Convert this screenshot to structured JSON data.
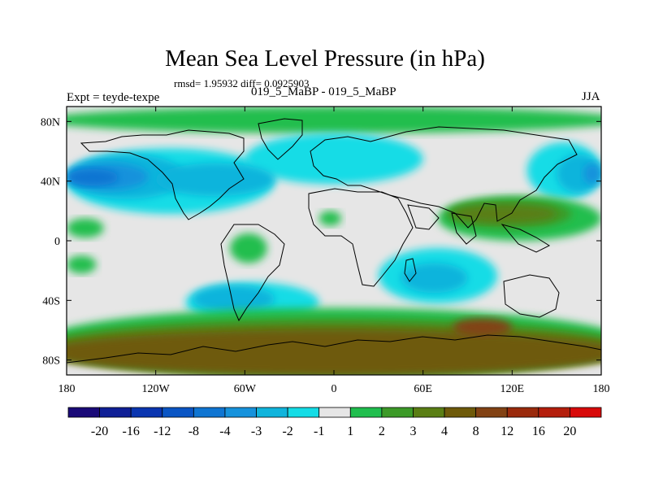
{
  "chart_data": {
    "type": "heatmap",
    "title": "Mean Sea Level Pressure (in hPa)",
    "stats_line": "rmsd= 1.95932 diff= 0.0925903",
    "experiment_label": "Expt = teyde-texpe",
    "comparison_label": "019_5_MaBP - 019_5_MaBP",
    "season": "JJA",
    "projection": "cylindrical equidistant",
    "lon_range": [
      -180,
      180
    ],
    "lat_range": [
      -90,
      90
    ],
    "x_ticks": [
      {
        "value": -180,
        "label": "180"
      },
      {
        "value": -120,
        "label": "120W"
      },
      {
        "value": -60,
        "label": "60W"
      },
      {
        "value": 0,
        "label": "0"
      },
      {
        "value": 60,
        "label": "60E"
      },
      {
        "value": 120,
        "label": "120E"
      },
      {
        "value": 180,
        "label": "180"
      }
    ],
    "y_ticks": [
      {
        "value": 80,
        "label": "80N"
      },
      {
        "value": 40,
        "label": "40N"
      },
      {
        "value": 0,
        "label": "0"
      },
      {
        "value": -40,
        "label": "40S"
      },
      {
        "value": -80,
        "label": "80S"
      }
    ],
    "colorbar": {
      "labels": [
        "-20",
        "-16",
        "-12",
        "-8",
        "-4",
        "-3",
        "-2",
        "-1",
        "1",
        "2",
        "3",
        "4",
        "8",
        "12",
        "16",
        "20"
      ],
      "colors": [
        "#1a0a78",
        "#0f1f96",
        "#0a35b0",
        "#0a55c4",
        "#0f75d2",
        "#1692dc",
        "#10b4dc",
        "#14dce6",
        "#e6e6e6",
        "#20be4e",
        "#3c9a28",
        "#5a7e14",
        "#6e5a0a",
        "#824214",
        "#9a2a0c",
        "#b41e0c",
        "#d80a0a"
      ]
    },
    "regions": [
      {
        "level": "1",
        "color": "#e6e6e6",
        "lon_min": -180,
        "lon_max": 180,
        "lat_min": -90,
        "lat_max": 90
      },
      {
        "level": "2",
        "color": "#20be4e",
        "lon_min": -180,
        "lon_max": 180,
        "lat_min": 72,
        "lat_max": 90
      },
      {
        "level": "-1",
        "color": "#14dce6",
        "lon_min": -180,
        "lon_max": -40,
        "lat_min": 18,
        "lat_max": 62
      },
      {
        "level": "-2",
        "color": "#10b4dc",
        "lon_min": -180,
        "lon_max": -100,
        "lat_min": 28,
        "lat_max": 58
      },
      {
        "level": "-3",
        "color": "#1692dc",
        "lon_min": -180,
        "lon_max": -125,
        "lat_min": 34,
        "lat_max": 52
      },
      {
        "level": "-4",
        "color": "#0f75d2",
        "lon_min": -180,
        "lon_max": -145,
        "lat_min": 37,
        "lat_max": 48
      },
      {
        "level": "-1",
        "color": "#14dce6",
        "lon_min": -60,
        "lon_max": 60,
        "lat_min": 38,
        "lat_max": 72
      },
      {
        "level": "-2",
        "color": "#10b4dc",
        "lon_min": -120,
        "lon_max": -40,
        "lat_min": 30,
        "lat_max": 52
      },
      {
        "level": "-1",
        "color": "#14dce6",
        "lon_min": 130,
        "lon_max": 180,
        "lat_min": 28,
        "lat_max": 66
      },
      {
        "level": "-2",
        "color": "#10b4dc",
        "lon_min": 150,
        "lon_max": 180,
        "lat_min": 32,
        "lat_max": 58
      },
      {
        "level": "-3",
        "color": "#1692dc",
        "lon_min": 168,
        "lon_max": 180,
        "lat_min": 38,
        "lat_max": 52
      },
      {
        "level": "2",
        "color": "#20be4e",
        "lon_min": 70,
        "lon_max": 180,
        "lat_min": 0,
        "lat_max": 30
      },
      {
        "level": "3",
        "color": "#3c9a28",
        "lon_min": 75,
        "lon_max": 160,
        "lat_min": 8,
        "lat_max": 28
      },
      {
        "level": "4",
        "color": "#5a7e14",
        "lon_min": 80,
        "lon_max": 150,
        "lat_min": 12,
        "lat_max": 24
      },
      {
        "level": "2",
        "color": "#20be4e",
        "lon_min": -180,
        "lon_max": -155,
        "lat_min": 2,
        "lat_max": 15
      },
      {
        "level": "2",
        "color": "#20be4e",
        "lon_min": -180,
        "lon_max": -160,
        "lat_min": -22,
        "lat_max": -10
      },
      {
        "level": "2",
        "color": "#20be4e",
        "lon_min": -70,
        "lon_max": -45,
        "lat_min": -15,
        "lat_max": 5
      },
      {
        "level": "2",
        "color": "#20be4e",
        "lon_min": -10,
        "lon_max": 5,
        "lat_min": 10,
        "lat_max": 20
      },
      {
        "level": "-1",
        "color": "#14dce6",
        "lon_min": 30,
        "lon_max": 110,
        "lat_min": -42,
        "lat_max": -5
      },
      {
        "level": "-2",
        "color": "#10b4dc",
        "lon_min": 45,
        "lon_max": 90,
        "lat_min": -35,
        "lat_max": -15
      },
      {
        "level": "-1",
        "color": "#14dce6",
        "lon_min": -100,
        "lon_max": -10,
        "lat_min": -55,
        "lat_max": -28
      },
      {
        "level": "-2",
        "color": "#10b4dc",
        "lon_min": -95,
        "lon_max": -40,
        "lat_min": -48,
        "lat_max": -30
      },
      {
        "level": "2",
        "color": "#20be4e",
        "lon_min": -180,
        "lon_max": 180,
        "lat_min": -90,
        "lat_max": -45
      },
      {
        "level": "3",
        "color": "#3c9a28",
        "lon_min": -180,
        "lon_max": 180,
        "lat_min": -90,
        "lat_max": -52
      },
      {
        "level": "4",
        "color": "#5a7e14",
        "lon_min": -180,
        "lon_max": 180,
        "lat_min": -90,
        "lat_max": -56
      },
      {
        "level": "8",
        "color": "#6e5a0a",
        "lon_min": -180,
        "lon_max": 180,
        "lat_min": -90,
        "lat_max": -60
      },
      {
        "level": "12",
        "color": "#824214",
        "lon_min": 80,
        "lon_max": 120,
        "lat_min": -64,
        "lat_max": -52
      }
    ]
  }
}
